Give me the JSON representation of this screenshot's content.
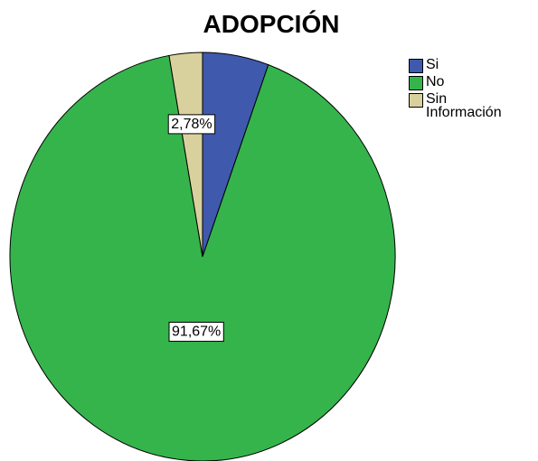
{
  "chart_data": {
    "type": "pie",
    "title": "ADOPCIÓN",
    "categories": [
      "Si",
      "No",
      "Sin Información"
    ],
    "values": [
      5.55,
      91.67,
      2.78
    ],
    "value_labels": [
      null,
      "91,67%",
      "2,78%"
    ],
    "colors": [
      "#3f59ad",
      "#35b44c",
      "#d9d19d"
    ],
    "legend": "right"
  }
}
